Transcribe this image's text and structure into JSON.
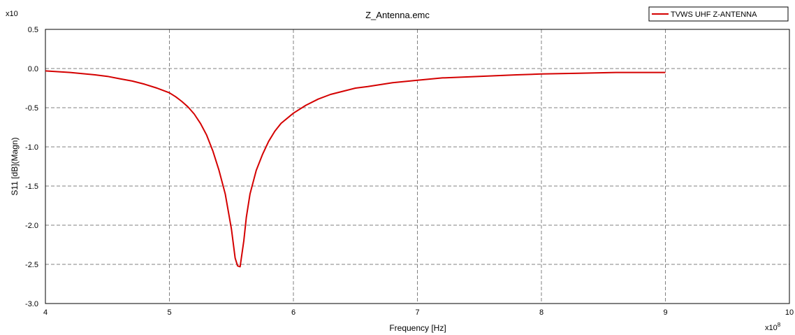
{
  "chart_data": {
    "type": "line",
    "title": "Z_Antenna.emc",
    "xlabel": "Frequency [Hz]",
    "ylabel": "S11 [dB](Magn)",
    "x_multiplier": "x10",
    "x_multiplier_exp": "8",
    "y_multiplier": "x10",
    "xlim": [
      4,
      10
    ],
    "ylim": [
      -3.0,
      0.5
    ],
    "x_ticks": [
      "4",
      "5",
      "6",
      "7",
      "8",
      "9",
      "10"
    ],
    "y_ticks": [
      "0.5",
      "0.0",
      "-0.5",
      "-1.0",
      "-1.5",
      "-2.0",
      "-2.5",
      "-3.0"
    ],
    "grid": true,
    "legend_position": "top-right",
    "series": [
      {
        "name": "TVWS UHF Z-ANTENNA",
        "color": "#d40000",
        "x": [
          4.0,
          4.2,
          4.4,
          4.5,
          4.6,
          4.7,
          4.8,
          4.9,
          5.0,
          5.05,
          5.1,
          5.15,
          5.2,
          5.25,
          5.3,
          5.35,
          5.4,
          5.45,
          5.5,
          5.53,
          5.55,
          5.57,
          5.6,
          5.62,
          5.65,
          5.7,
          5.75,
          5.8,
          5.85,
          5.9,
          6.0,
          6.1,
          6.2,
          6.3,
          6.4,
          6.5,
          6.6,
          6.8,
          7.0,
          7.2,
          7.5,
          7.8,
          8.0,
          8.3,
          8.6,
          9.0
        ],
        "values": [
          -0.03,
          -0.05,
          -0.08,
          -0.1,
          -0.13,
          -0.16,
          -0.2,
          -0.25,
          -0.31,
          -0.36,
          -0.42,
          -0.49,
          -0.58,
          -0.7,
          -0.85,
          -1.05,
          -1.3,
          -1.6,
          -2.05,
          -2.42,
          -2.52,
          -2.53,
          -2.2,
          -1.9,
          -1.6,
          -1.3,
          -1.1,
          -0.93,
          -0.8,
          -0.7,
          -0.57,
          -0.47,
          -0.39,
          -0.33,
          -0.29,
          -0.25,
          -0.23,
          -0.18,
          -0.15,
          -0.12,
          -0.1,
          -0.08,
          -0.07,
          -0.06,
          -0.05,
          -0.05
        ]
      }
    ]
  }
}
